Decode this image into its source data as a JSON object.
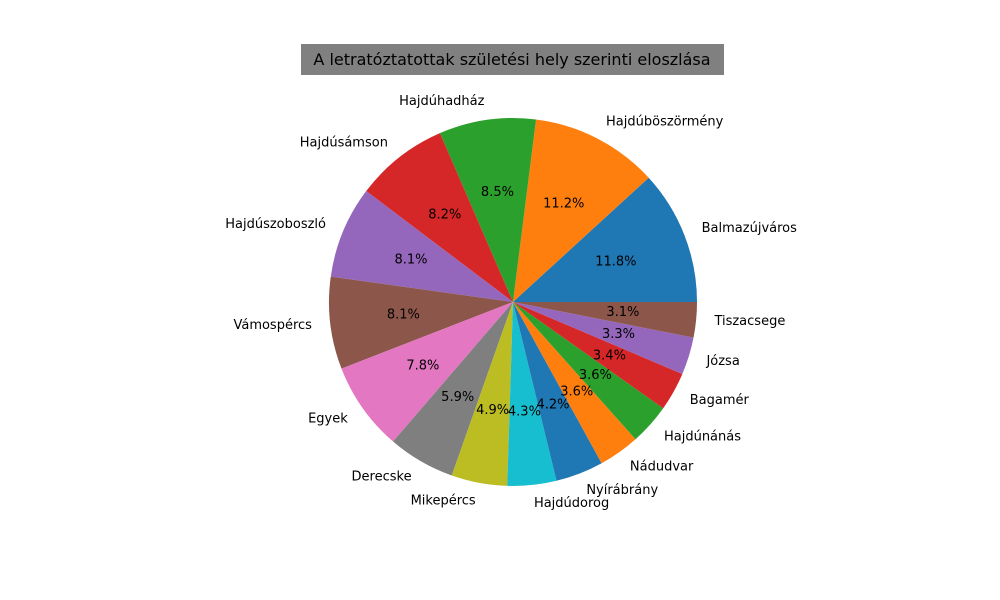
{
  "chart_data": {
    "type": "pie",
    "title": "A letratóztatottak születési hely szerinti eloszlása",
    "start_angle": 0,
    "direction": "counterclockwise",
    "slices": [
      {
        "label": "Balmazújváros",
        "value": 11.8,
        "pct_label": "11.8%",
        "color": "#1f77b4"
      },
      {
        "label": "Hajdúböszörmény",
        "value": 11.2,
        "pct_label": "11.2%",
        "color": "#ff7f0e"
      },
      {
        "label": "Hajdúhadház",
        "value": 8.5,
        "pct_label": "8.5%",
        "color": "#2ca02c"
      },
      {
        "label": "Hajdúsámson",
        "value": 8.2,
        "pct_label": "8.2%",
        "color": "#d62728"
      },
      {
        "label": "Hajdúszoboszló",
        "value": 8.1,
        "pct_label": "8.1%",
        "color": "#9467bd"
      },
      {
        "label": "Vámospércs",
        "value": 8.1,
        "pct_label": "8.1%",
        "color": "#8c564b"
      },
      {
        "label": "Egyek",
        "value": 7.8,
        "pct_label": "7.8%",
        "color": "#e377c2"
      },
      {
        "label": "Derecske",
        "value": 5.9,
        "pct_label": "5.9%",
        "color": "#7f7f7f"
      },
      {
        "label": "Mikepércs",
        "value": 4.9,
        "pct_label": "4.9%",
        "color": "#bcbd22"
      },
      {
        "label": "Hajdúdorog",
        "value": 4.3,
        "pct_label": "4.3%",
        "color": "#17becf"
      },
      {
        "label": "Nyírábrány",
        "value": 4.2,
        "pct_label": "4.2%",
        "color": "#1f77b4"
      },
      {
        "label": "Nádudvar",
        "value": 3.6,
        "pct_label": "3.6%",
        "color": "#ff7f0e"
      },
      {
        "label": "Hajdúnánás",
        "value": 3.6,
        "pct_label": "3.6%",
        "color": "#2ca02c"
      },
      {
        "label": "Bagamér",
        "value": 3.4,
        "pct_label": "3.4%",
        "color": "#d62728"
      },
      {
        "label": "Józsa",
        "value": 3.3,
        "pct_label": "3.3%",
        "color": "#9467bd"
      },
      {
        "label": "Tiszacsege",
        "value": 3.1,
        "pct_label": "3.1%",
        "color": "#8c564b"
      }
    ]
  }
}
